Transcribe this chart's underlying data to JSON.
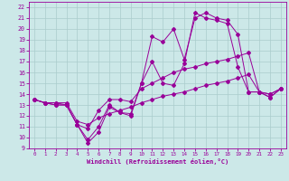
{
  "xlabel": "Windchill (Refroidissement éolien,°C)",
  "bg_color": "#cce8e8",
  "grid_color": "#aacccc",
  "line_color": "#990099",
  "xlim": [
    -0.5,
    23.5
  ],
  "ylim": [
    9,
    22.5
  ],
  "xticks": [
    0,
    1,
    2,
    3,
    4,
    5,
    6,
    7,
    8,
    9,
    10,
    11,
    12,
    13,
    14,
    15,
    16,
    17,
    18,
    19,
    20,
    21,
    22,
    23
  ],
  "yticks": [
    9,
    10,
    11,
    12,
    13,
    14,
    15,
    16,
    17,
    18,
    19,
    20,
    21,
    22
  ],
  "series1_x": [
    0,
    1,
    2,
    3,
    4,
    5,
    6,
    7,
    8,
    9,
    10,
    11,
    12,
    13,
    14,
    15,
    16,
    17,
    18,
    19,
    20,
    21,
    22,
    23
  ],
  "series1_y": [
    13.5,
    13.2,
    13.0,
    13.0,
    11.2,
    9.5,
    10.5,
    12.8,
    12.3,
    12.2,
    15.0,
    19.3,
    18.8,
    20.0,
    17.2,
    21.0,
    21.5,
    21.0,
    20.8,
    19.5,
    14.2,
    14.2,
    13.7,
    14.5
  ],
  "series2_x": [
    0,
    1,
    2,
    3,
    4,
    5,
    6,
    7,
    8,
    9,
    10,
    11,
    12,
    13,
    14,
    15,
    16,
    17,
    18,
    19,
    20,
    21,
    22,
    23
  ],
  "series2_y": [
    13.5,
    13.2,
    13.0,
    13.0,
    11.2,
    9.8,
    11.0,
    13.0,
    12.3,
    12.0,
    15.0,
    17.0,
    15.0,
    14.8,
    16.8,
    21.5,
    21.0,
    20.8,
    20.5,
    16.5,
    14.2,
    14.2,
    13.7,
    14.5
  ],
  "series3_x": [
    0,
    1,
    2,
    3,
    4,
    5,
    6,
    7,
    8,
    9,
    10,
    11,
    12,
    13,
    14,
    15,
    16,
    17,
    18,
    19,
    20,
    21,
    22,
    23
  ],
  "series3_y": [
    13.5,
    13.2,
    13.2,
    13.0,
    11.2,
    10.8,
    12.5,
    13.5,
    13.5,
    13.3,
    14.5,
    15.0,
    15.5,
    16.0,
    16.3,
    16.5,
    16.8,
    17.0,
    17.2,
    17.5,
    17.8,
    14.2,
    14.0,
    14.5
  ],
  "series4_x": [
    0,
    1,
    2,
    3,
    4,
    5,
    6,
    7,
    8,
    9,
    10,
    11,
    12,
    13,
    14,
    15,
    16,
    17,
    18,
    19,
    20,
    21,
    22,
    23
  ],
  "series4_y": [
    13.5,
    13.2,
    13.2,
    13.2,
    11.5,
    11.2,
    11.8,
    12.2,
    12.5,
    12.8,
    13.2,
    13.5,
    13.8,
    14.0,
    14.2,
    14.5,
    14.8,
    15.0,
    15.2,
    15.5,
    15.8,
    14.2,
    14.0,
    14.5
  ]
}
